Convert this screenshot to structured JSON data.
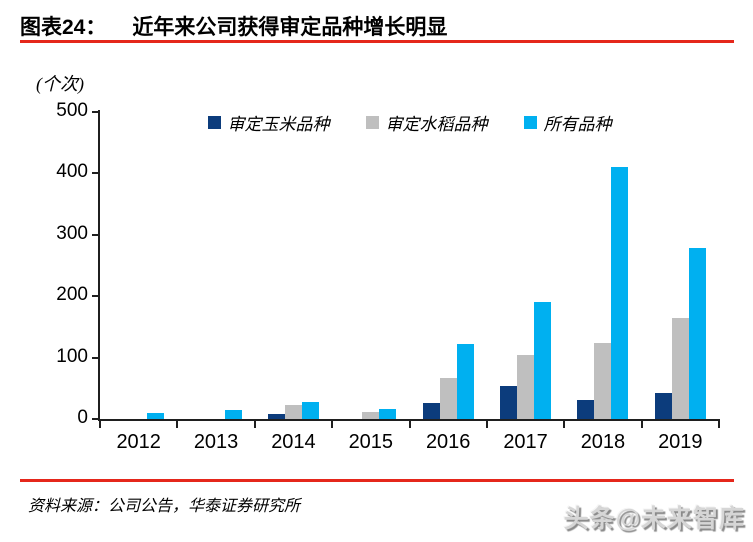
{
  "header": {
    "label": "图表24：",
    "title": "近年来公司获得审定品种增长明显"
  },
  "chart_data": {
    "type": "bar",
    "title": "近年来公司获得审定品种增长明显",
    "ylabel": "(个次)",
    "xlabel": "",
    "ylim": [
      0,
      500
    ],
    "yticks": [
      0,
      100,
      200,
      300,
      400,
      500
    ],
    "grid": false,
    "legend_position": "top",
    "categories": [
      "2012",
      "2013",
      "2014",
      "2015",
      "2016",
      "2017",
      "2018",
      "2019"
    ],
    "series": [
      {
        "name": "审定玉米品种",
        "color": "#0C3C7C",
        "values": [
          0,
          0,
          8,
          0,
          26,
          53,
          31,
          43
        ]
      },
      {
        "name": "审定水稻品种",
        "color": "#BFBFBF",
        "values": [
          0,
          0,
          22,
          12,
          67,
          105,
          123,
          165
        ]
      },
      {
        "name": "所有品种",
        "color": "#00B0F0",
        "values": [
          10,
          14,
          28,
          16,
          122,
          190,
          410,
          278
        ]
      }
    ]
  },
  "footer": {
    "source": "资料来源：公司公告，华泰证券研究所",
    "watermark": "头条@未来智库"
  },
  "colors": {
    "accent_red": "#E5271B",
    "axis": "#1F1F1F"
  }
}
